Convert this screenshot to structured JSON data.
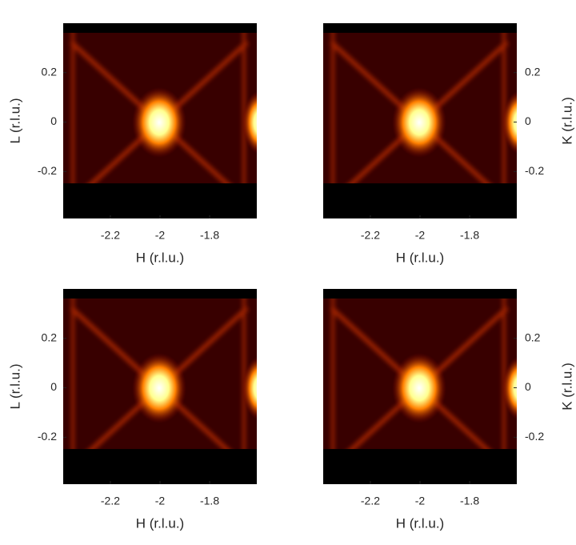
{
  "chart_data": [
    {
      "type": "heatmap",
      "xlabel": "H (r.l.u.)",
      "ylabel": "L (r.l.u.)",
      "yaxis_side": "left",
      "xlim": [
        -2.39,
        -1.61
      ],
      "ylim": [
        -0.39,
        0.4
      ],
      "xticks": [
        -2.2,
        -2,
        -1.8
      ],
      "yticks": [
        -0.2,
        0,
        0.2
      ]
    },
    {
      "type": "heatmap",
      "xlabel": "H (r.l.u.)",
      "ylabel": "K (r.l.u.)",
      "yaxis_side": "right",
      "xlim": [
        -2.39,
        -1.61
      ],
      "ylim": [
        -0.39,
        0.4
      ],
      "xticks": [
        -2.2,
        -2,
        -1.8
      ],
      "yticks": [
        -0.2,
        0,
        0.2
      ]
    },
    {
      "type": "heatmap",
      "xlabel": "H (r.l.u.)",
      "ylabel": "L (r.l.u.)",
      "yaxis_side": "left",
      "xlim": [
        -2.39,
        -1.61
      ],
      "ylim": [
        -0.39,
        0.4
      ],
      "xticks": [
        -2.2,
        -2,
        -1.8
      ],
      "yticks": [
        -0.2,
        0,
        0.2
      ]
    },
    {
      "type": "heatmap",
      "xlabel": "H (r.l.u.)",
      "ylabel": "K (r.l.u.)",
      "yaxis_side": "right",
      "xlim": [
        -2.39,
        -1.61
      ],
      "ylim": [
        -0.39,
        0.4
      ],
      "xticks": [
        -2.2,
        -2,
        -1.8
      ],
      "yticks": [
        -0.2,
        0,
        0.2
      ]
    }
  ]
}
